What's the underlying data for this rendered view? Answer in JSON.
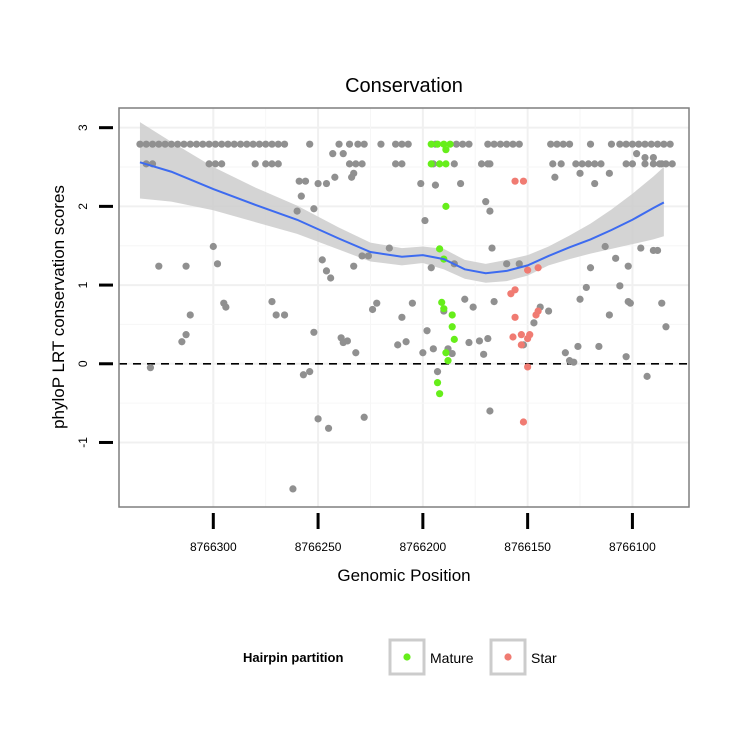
{
  "chart_data": {
    "type": "scatter",
    "title": "Conservation",
    "xlabel": "Genomic Position",
    "ylabel": "phyloP LRT conservation scores",
    "x_reversed": true,
    "xlim": [
      8766345,
      8766073
    ],
    "ylim": [
      -1.82,
      3.25
    ],
    "x_ticks": [
      8766300,
      8766250,
      8766200,
      8766150,
      8766100
    ],
    "y_ticks": [
      -1,
      0,
      1,
      2,
      3
    ],
    "grid": true,
    "reference_line": {
      "y": 0,
      "style": "dashed"
    },
    "legend": {
      "title": "Hairpin partition",
      "placement": "bottom",
      "entries": [
        {
          "name": "Mature",
          "color": "#66ee1a"
        },
        {
          "name": "Star",
          "color": "#f07b72"
        }
      ]
    },
    "colors": {
      "other": "#909090",
      "Mature": "#66ee1a",
      "Star": "#f07b72",
      "smooth_line": "#3d6bf0",
      "ribbon": "#cccccc"
    },
    "series": [
      {
        "group": "other",
        "points": [
          [
            8766335,
            2.79
          ],
          [
            8766332,
            2.79
          ],
          [
            8766329,
            2.79
          ],
          [
            8766326,
            2.79
          ],
          [
            8766323,
            2.79
          ],
          [
            8766320,
            2.79
          ],
          [
            8766317,
            2.79
          ],
          [
            8766314,
            2.79
          ],
          [
            8766311,
            2.79
          ],
          [
            8766308,
            2.79
          ],
          [
            8766305,
            2.79
          ],
          [
            8766302,
            2.79
          ],
          [
            8766299,
            2.79
          ],
          [
            8766296,
            2.79
          ],
          [
            8766293,
            2.79
          ],
          [
            8766290,
            2.79
          ],
          [
            8766287,
            2.79
          ],
          [
            8766284,
            2.79
          ],
          [
            8766281,
            2.79
          ],
          [
            8766278,
            2.79
          ],
          [
            8766275,
            2.79
          ],
          [
            8766272,
            2.79
          ],
          [
            8766269,
            2.79
          ],
          [
            8766266,
            2.79
          ],
          [
            8766332,
            2.54
          ],
          [
            8766329,
            2.54
          ],
          [
            8766302,
            2.54
          ],
          [
            8766299,
            2.54
          ],
          [
            8766296,
            2.54
          ],
          [
            8766280,
            2.54
          ],
          [
            8766275,
            2.54
          ],
          [
            8766272,
            2.54
          ],
          [
            8766269,
            2.54
          ],
          [
            8766254,
            2.79
          ],
          [
            8766240,
            2.79
          ],
          [
            8766235,
            2.79
          ],
          [
            8766231,
            2.79
          ],
          [
            8766228,
            2.79
          ],
          [
            8766220,
            2.79
          ],
          [
            8766213,
            2.79
          ],
          [
            8766210,
            2.79
          ],
          [
            8766207,
            2.79
          ],
          [
            8766243,
            2.67
          ],
          [
            8766238,
            2.67
          ],
          [
            8766235,
            2.54
          ],
          [
            8766232,
            2.54
          ],
          [
            8766229,
            2.54
          ],
          [
            8766213,
            2.54
          ],
          [
            8766210,
            2.54
          ],
          [
            8766233,
            2.42
          ],
          [
            8766242,
            2.37
          ],
          [
            8766259,
            2.32
          ],
          [
            8766256,
            2.32
          ],
          [
            8766250,
            2.29
          ],
          [
            8766246,
            2.29
          ],
          [
            8766234,
            2.37
          ],
          [
            8766258,
            2.13
          ],
          [
            8766252,
            1.97
          ],
          [
            8766194,
            2.79
          ],
          [
            8766184,
            2.79
          ],
          [
            8766181,
            2.79
          ],
          [
            8766178,
            2.79
          ],
          [
            8766169,
            2.79
          ],
          [
            8766166,
            2.79
          ],
          [
            8766163,
            2.79
          ],
          [
            8766160,
            2.79
          ],
          [
            8766157,
            2.79
          ],
          [
            8766154,
            2.79
          ],
          [
            8766195,
            2.54
          ],
          [
            8766185,
            2.54
          ],
          [
            8766172,
            2.54
          ],
          [
            8766169,
            2.54
          ],
          [
            8766168,
            2.54
          ],
          [
            8766201,
            2.29
          ],
          [
            8766194,
            2.27
          ],
          [
            8766182,
            2.29
          ],
          [
            8766170,
            2.06
          ],
          [
            8766168,
            1.94
          ],
          [
            8766199,
            1.82
          ],
          [
            8766139,
            2.79
          ],
          [
            8766136,
            2.79
          ],
          [
            8766133,
            2.79
          ],
          [
            8766130,
            2.79
          ],
          [
            8766120,
            2.79
          ],
          [
            8766110,
            2.79
          ],
          [
            8766106,
            2.79
          ],
          [
            8766103,
            2.79
          ],
          [
            8766100,
            2.79
          ],
          [
            8766097,
            2.79
          ],
          [
            8766094,
            2.79
          ],
          [
            8766091,
            2.79
          ],
          [
            8766088,
            2.79
          ],
          [
            8766085,
            2.79
          ],
          [
            8766082,
            2.79
          ],
          [
            8766138,
            2.54
          ],
          [
            8766134,
            2.54
          ],
          [
            8766127,
            2.54
          ],
          [
            8766124,
            2.54
          ],
          [
            8766121,
            2.54
          ],
          [
            8766118,
            2.54
          ],
          [
            8766115,
            2.54
          ],
          [
            8766103,
            2.54
          ],
          [
            8766100,
            2.54
          ],
          [
            8766094,
            2.54
          ],
          [
            8766090,
            2.54
          ],
          [
            8766087,
            2.54
          ],
          [
            8766084,
            2.54
          ],
          [
            8766137,
            2.37
          ],
          [
            8766125,
            2.42
          ],
          [
            8766118,
            2.29
          ],
          [
            8766111,
            2.42
          ],
          [
            8766098,
            2.67
          ],
          [
            8766094,
            2.62
          ],
          [
            8766090,
            2.62
          ],
          [
            8766086,
            2.54
          ],
          [
            8766081,
            2.54
          ],
          [
            8766330,
            -0.05
          ],
          [
            8766326,
            1.24
          ],
          [
            8766315,
            0.28
          ],
          [
            8766313,
            0.37
          ],
          [
            8766313,
            1.24
          ],
          [
            8766311,
            0.62
          ],
          [
            8766300,
            1.49
          ],
          [
            8766298,
            1.27
          ],
          [
            8766295,
            0.77
          ],
          [
            8766294,
            0.72
          ],
          [
            8766272,
            0.79
          ],
          [
            8766270,
            0.62
          ],
          [
            8766266,
            0.62
          ],
          [
            8766260,
            1.94
          ],
          [
            8766257,
            -0.14
          ],
          [
            8766254,
            -0.1
          ],
          [
            8766252,
            0.4
          ],
          [
            8766248,
            1.32
          ],
          [
            8766246,
            1.18
          ],
          [
            8766244,
            1.09
          ],
          [
            8766239,
            0.33
          ],
          [
            8766238,
            0.27
          ],
          [
            8766236,
            0.29
          ],
          [
            8766233,
            1.24
          ],
          [
            8766232,
            0.14
          ],
          [
            8766229,
            1.37
          ],
          [
            8766226,
            1.37
          ],
          [
            8766224,
            0.69
          ],
          [
            8766222,
            0.77
          ],
          [
            8766216,
            1.47
          ],
          [
            8766212,
            0.24
          ],
          [
            8766250,
            -0.7
          ],
          [
            8766245,
            -0.82
          ],
          [
            8766228,
            -0.68
          ],
          [
            8766262,
            -1.59
          ],
          [
            8766210,
            0.59
          ],
          [
            8766208,
            0.28
          ],
          [
            8766205,
            0.77
          ],
          [
            8766200,
            0.14
          ],
          [
            8766198,
            0.42
          ],
          [
            8766196,
            1.22
          ],
          [
            8766195,
            0.19
          ],
          [
            8766193,
            -0.1
          ],
          [
            8766190,
            0.67
          ],
          [
            8766188,
            0.19
          ],
          [
            8766186,
            0.13
          ],
          [
            8766185,
            1.27
          ],
          [
            8766180,
            0.82
          ],
          [
            8766178,
            0.27
          ],
          [
            8766176,
            0.72
          ],
          [
            8766173,
            0.29
          ],
          [
            8766171,
            0.12
          ],
          [
            8766169,
            0.32
          ],
          [
            8766167,
            1.47
          ],
          [
            8766166,
            0.79
          ],
          [
            8766168,
            -0.6
          ],
          [
            8766160,
            1.27
          ],
          [
            8766154,
            1.27
          ],
          [
            8766152,
            0.24
          ],
          [
            8766147,
            0.52
          ],
          [
            8766144,
            0.72
          ],
          [
            8766140,
            0.67
          ],
          [
            8766132,
            0.14
          ],
          [
            8766130,
            0.04
          ],
          [
            8766128,
            0.02
          ],
          [
            8766126,
            0.22
          ],
          [
            8766125,
            0.82
          ],
          [
            8766122,
            0.97
          ],
          [
            8766120,
            1.22
          ],
          [
            8766116,
            0.22
          ],
          [
            8766113,
            1.49
          ],
          [
            8766111,
            0.62
          ],
          [
            8766108,
            1.34
          ],
          [
            8766106,
            0.99
          ],
          [
            8766102,
            1.24
          ],
          [
            8766102,
            0.79
          ],
          [
            8766101,
            0.77
          ],
          [
            8766096,
            1.47
          ],
          [
            8766093,
            -0.16
          ],
          [
            8766090,
            1.44
          ],
          [
            8766088,
            1.44
          ],
          [
            8766086,
            0.77
          ],
          [
            8766084,
            0.47
          ],
          [
            8766103,
            0.09
          ]
        ]
      },
      {
        "group": "Mature",
        "points": [
          [
            8766196,
            2.79
          ],
          [
            8766193,
            2.79
          ],
          [
            8766190,
            2.79
          ],
          [
            8766187,
            2.79
          ],
          [
            8766196,
            2.54
          ],
          [
            8766192,
            2.54
          ],
          [
            8766189,
            2.54
          ],
          [
            8766189,
            2.72
          ],
          [
            8766189,
            2.0
          ],
          [
            8766192,
            1.46
          ],
          [
            8766190,
            1.33
          ],
          [
            8766191,
            0.78
          ],
          [
            8766190,
            0.7
          ],
          [
            8766186,
            0.62
          ],
          [
            8766186,
            0.47
          ],
          [
            8766185,
            0.31
          ],
          [
            8766189,
            0.14
          ],
          [
            8766188,
            0.04
          ],
          [
            8766193,
            -0.24
          ],
          [
            8766192,
            -0.38
          ]
        ]
      },
      {
        "group": "Star",
        "points": [
          [
            8766156,
            2.32
          ],
          [
            8766152,
            2.32
          ],
          [
            8766145,
            1.22
          ],
          [
            8766150,
            1.19
          ],
          [
            8766156,
            0.94
          ],
          [
            8766158,
            0.89
          ],
          [
            8766156,
            0.59
          ],
          [
            8766157,
            0.34
          ],
          [
            8766153,
            0.24
          ],
          [
            8766153,
            0.37
          ],
          [
            8766150,
            0.32
          ],
          [
            8766149,
            0.37
          ],
          [
            8766146,
            0.62
          ],
          [
            8766145,
            0.67
          ],
          [
            8766150,
            -0.04
          ],
          [
            8766152,
            -0.74
          ]
        ]
      }
    ],
    "smooth": {
      "x": [
        8766335,
        8766320,
        8766300,
        8766280,
        8766260,
        8766240,
        8766225,
        8766210,
        8766200,
        8766190,
        8766180,
        8766170,
        8766160,
        8766150,
        8766140,
        8766130,
        8766120,
        8766110,
        8766100,
        8766090,
        8766085
      ],
      "y": [
        2.56,
        2.44,
        2.22,
        2.02,
        1.83,
        1.59,
        1.42,
        1.36,
        1.38,
        1.33,
        1.2,
        1.15,
        1.18,
        1.25,
        1.37,
        1.48,
        1.58,
        1.7,
        1.83,
        1.98,
        2.05
      ],
      "lower": [
        2.1,
        2.06,
        1.95,
        1.8,
        1.65,
        1.45,
        1.3,
        1.25,
        1.28,
        1.2,
        1.08,
        1.03,
        1.05,
        1.12,
        1.25,
        1.33,
        1.4,
        1.46,
        1.52,
        1.58,
        1.62
      ],
      "upper": [
        3.07,
        2.82,
        2.5,
        2.24,
        2.01,
        1.73,
        1.54,
        1.47,
        1.49,
        1.46,
        1.32,
        1.27,
        1.32,
        1.38,
        1.49,
        1.63,
        1.78,
        1.96,
        2.16,
        2.38,
        2.5
      ]
    }
  }
}
